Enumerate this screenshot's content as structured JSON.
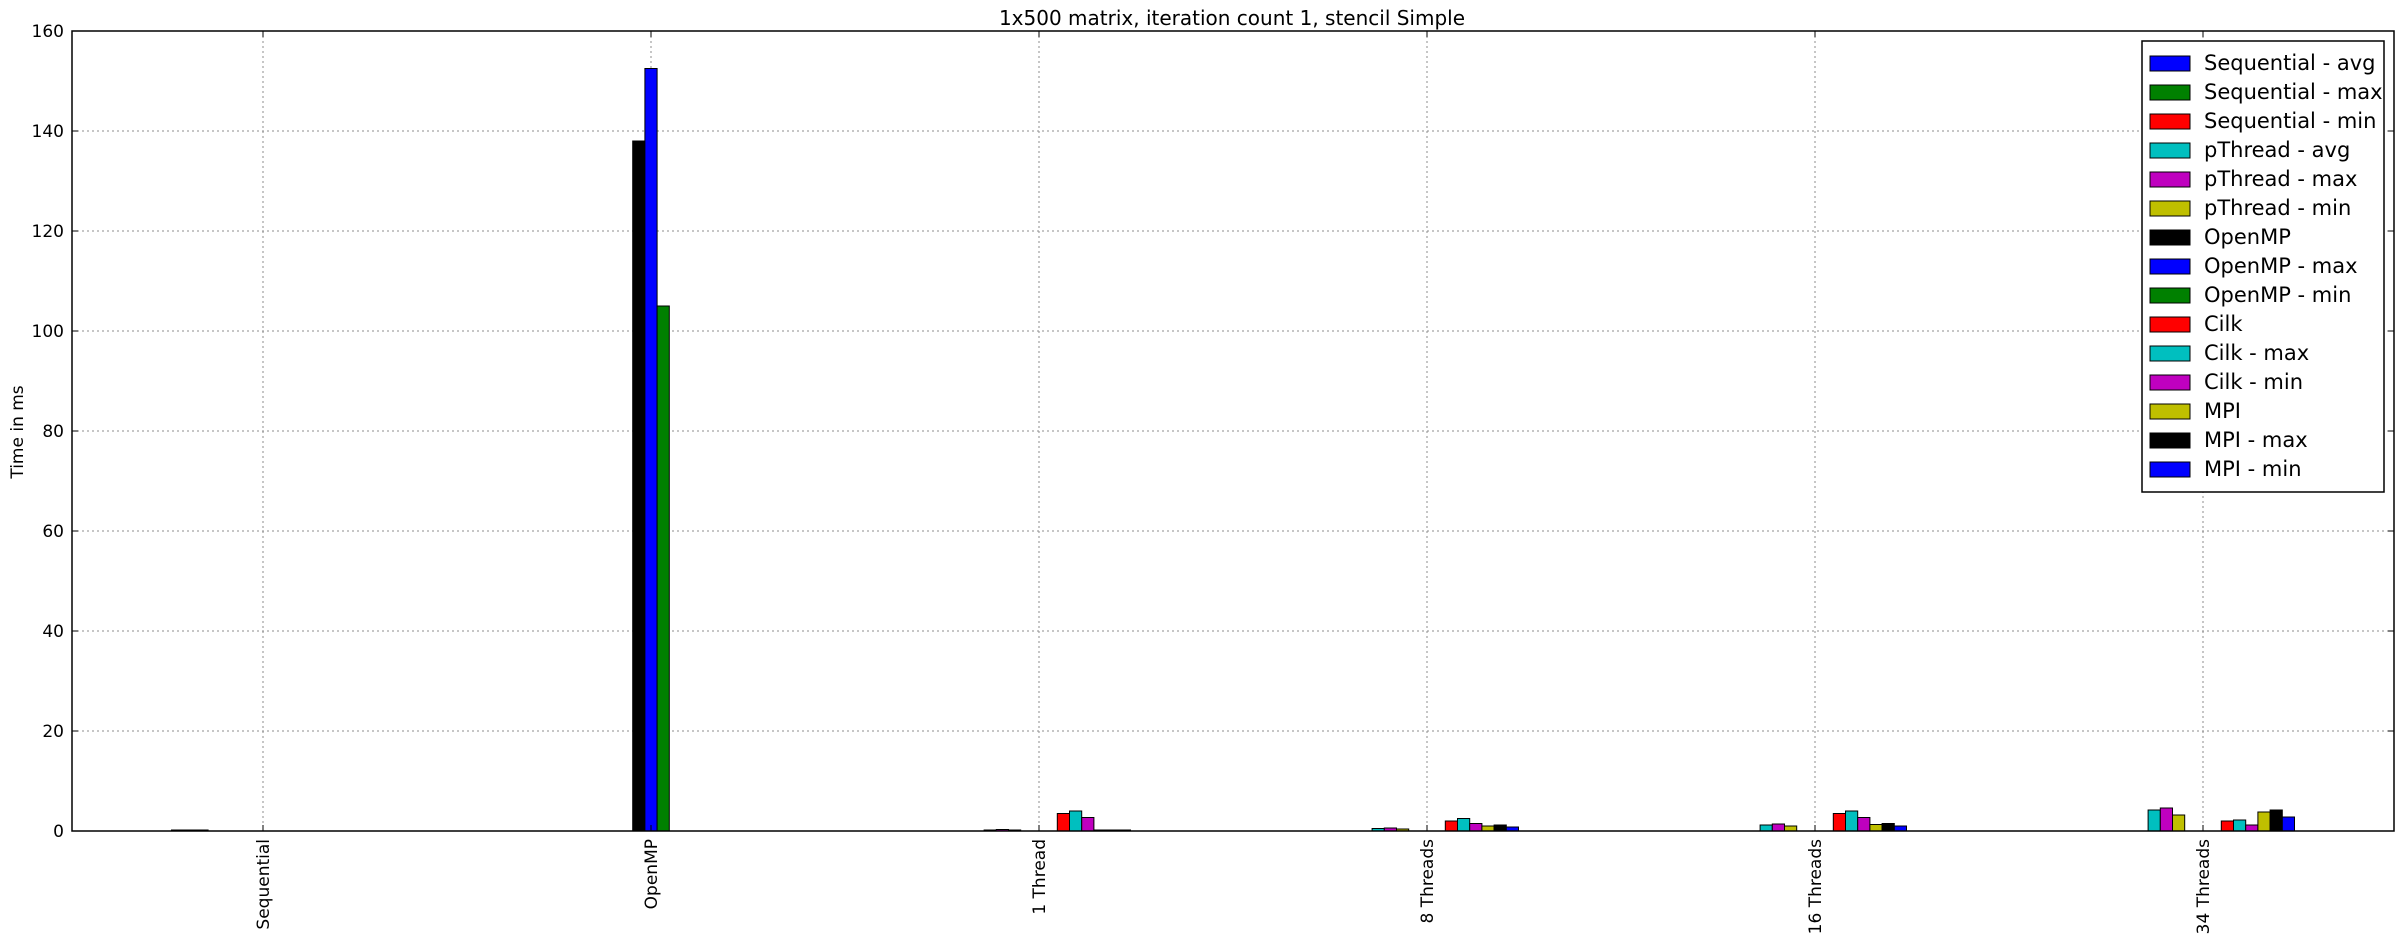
{
  "chart_data": {
    "type": "bar",
    "title": "1x500 matrix, iteration count 1, stencil Simple",
    "xlabel": "",
    "ylabel": "Time in ms",
    "ylim": [
      0,
      160
    ],
    "yticks": [
      0,
      20,
      40,
      60,
      80,
      100,
      120,
      140,
      160
    ],
    "grid": true,
    "legend_position": "top-right",
    "categories": [
      "Sequential",
      "OpenMP",
      "1 Thread",
      "8 Threads",
      "16 Threads",
      "34 Threads"
    ],
    "series": [
      {
        "name": "Sequential - avg",
        "color": "#0000ff",
        "values": [
          0.1,
          0,
          0,
          0,
          0,
          0
        ]
      },
      {
        "name": "Sequential - max",
        "color": "#008000",
        "values": [
          0.1,
          0,
          0,
          0,
          0,
          0
        ]
      },
      {
        "name": "Sequential - min",
        "color": "#ff0000",
        "values": [
          0.1,
          0,
          0,
          0,
          0,
          0
        ]
      },
      {
        "name": "pThread - avg",
        "color": "#00bfbf",
        "values": [
          0,
          0,
          0.1,
          0.5,
          1.2,
          4.2
        ]
      },
      {
        "name": "pThread - max",
        "color": "#bf00bf",
        "values": [
          0,
          0,
          0.3,
          0.6,
          1.4,
          4.6
        ]
      },
      {
        "name": "pThread - min",
        "color": "#bfbf00",
        "values": [
          0,
          0,
          0.1,
          0.4,
          1.0,
          3.2
        ]
      },
      {
        "name": "OpenMP",
        "color": "#000000",
        "values": [
          0,
          138,
          0,
          0,
          0,
          0
        ]
      },
      {
        "name": "OpenMP - max",
        "color": "#0000ff",
        "values": [
          0,
          152.5,
          0,
          0,
          0,
          0
        ]
      },
      {
        "name": "OpenMP - min",
        "color": "#008000",
        "values": [
          0,
          105,
          0,
          0,
          0,
          0
        ]
      },
      {
        "name": "Cilk",
        "color": "#ff0000",
        "values": [
          0,
          0,
          3.5,
          2.0,
          3.5,
          2.0
        ]
      },
      {
        "name": "Cilk - max",
        "color": "#00bfbf",
        "values": [
          0,
          0,
          4.0,
          2.5,
          4.0,
          2.2
        ]
      },
      {
        "name": "Cilk - min",
        "color": "#bf00bf",
        "values": [
          0,
          0,
          2.7,
          1.5,
          2.7,
          1.2
        ]
      },
      {
        "name": "MPI",
        "color": "#bfbf00",
        "values": [
          0,
          0,
          0.1,
          1.0,
          1.3,
          3.8
        ]
      },
      {
        "name": "MPI - max",
        "color": "#000000",
        "values": [
          0,
          0,
          0.1,
          1.2,
          1.5,
          4.2
        ]
      },
      {
        "name": "MPI - min",
        "color": "#0000ff",
        "values": [
          0,
          0,
          0.1,
          0.8,
          1.0,
          2.8
        ]
      }
    ]
  }
}
